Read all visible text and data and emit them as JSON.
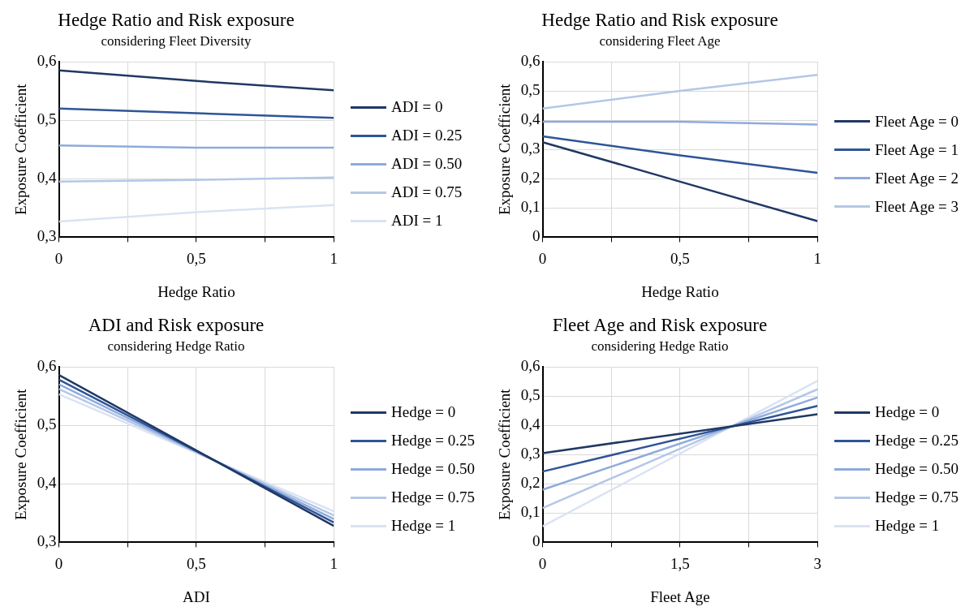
{
  "chart_data": [
    {
      "type": "line",
      "title": "Hedge Ratio and Risk exposure",
      "subtitle": "considering Fleet Diversity",
      "xlabel": "Hedge Ratio",
      "ylabel": "Exposure Coefficient",
      "x": [
        0,
        0.5,
        1
      ],
      "xlim": [
        0,
        1
      ],
      "xticks": [
        0,
        {
          "value": 0.25,
          "label": null
        },
        {
          "value": 0.5,
          "label": "0,5"
        },
        {
          "value": 0.75,
          "label": null
        },
        1
      ],
      "ylim": [
        0.3,
        0.6
      ],
      "yticks": [
        {
          "value": 0.3,
          "label": "0,3"
        },
        {
          "value": 0.4,
          "label": "0,4"
        },
        {
          "value": 0.5,
          "label": "0,5"
        },
        {
          "value": 0.6,
          "label": "0,6"
        }
      ],
      "grid": true,
      "legend": "right",
      "marker": "none",
      "line_style": "solid",
      "series": [
        {
          "name": "ADI = 0",
          "color": "#203864",
          "values": [
            0.585,
            0.567,
            0.551
          ]
        },
        {
          "name": "ADI = 0.25",
          "color": "#2f5597",
          "values": [
            0.52,
            0.512,
            0.504
          ]
        },
        {
          "name": "ADI = 0.50",
          "color": "#8faadc",
          "values": [
            0.457,
            0.453,
            0.453
          ]
        },
        {
          "name": "ADI = 0.75",
          "color": "#b4c7e7",
          "values": [
            0.395,
            0.398,
            0.402
          ]
        },
        {
          "name": "ADI = 1",
          "color": "#dae3f3",
          "values": [
            0.327,
            0.343,
            0.355
          ]
        }
      ]
    },
    {
      "type": "line",
      "title": "Hedge Ratio and Risk exposure",
      "subtitle": "considering Fleet Age",
      "xlabel": "Hedge Ratio",
      "ylabel": "Exposure Coefficient",
      "x": [
        0,
        0.5,
        1
      ],
      "xlim": [
        0,
        1
      ],
      "xticks": [
        0,
        {
          "value": 0.25,
          "label": null
        },
        {
          "value": 0.5,
          "label": "0,5"
        },
        {
          "value": 0.75,
          "label": null
        },
        1
      ],
      "ylim": [
        0,
        0.6
      ],
      "yticks": [
        0,
        {
          "value": 0.1,
          "label": "0,1"
        },
        {
          "value": 0.2,
          "label": "0,2"
        },
        {
          "value": 0.3,
          "label": "0,3"
        },
        {
          "value": 0.4,
          "label": "0,4"
        },
        {
          "value": 0.5,
          "label": "0,5"
        },
        {
          "value": 0.6,
          "label": "0,6"
        }
      ],
      "grid": true,
      "legend": "right",
      "marker": "none",
      "line_style": "solid",
      "series": [
        {
          "name": "Fleet Age = 0",
          "color": "#203864",
          "values": [
            0.325,
            0.19,
            0.055
          ]
        },
        {
          "name": "Fleet Age = 1",
          "color": "#2f5597",
          "values": [
            0.345,
            0.28,
            0.22
          ]
        },
        {
          "name": "Fleet Age = 2",
          "color": "#8faadc",
          "values": [
            0.395,
            0.395,
            0.385
          ]
        },
        {
          "name": "Fleet Age = 3",
          "color": "#b4c7e7",
          "values": [
            0.44,
            0.5,
            0.555
          ]
        }
      ]
    },
    {
      "type": "line",
      "title": "ADI and Risk exposure",
      "subtitle": "considering Hedge Ratio",
      "xlabel": "ADI",
      "ylabel": "Exposure Coefficient",
      "x": [
        0,
        0.5,
        1
      ],
      "xlim": [
        0,
        1
      ],
      "xticks": [
        0,
        {
          "value": 0.25,
          "label": null
        },
        {
          "value": 0.5,
          "label": "0,5"
        },
        {
          "value": 0.75,
          "label": null
        },
        1
      ],
      "ylim": [
        0.3,
        0.6
      ],
      "yticks": [
        {
          "value": 0.3,
          "label": "0,3"
        },
        {
          "value": 0.4,
          "label": "0,4"
        },
        {
          "value": 0.5,
          "label": "0,5"
        },
        {
          "value": 0.6,
          "label": "0,6"
        }
      ],
      "grid": true,
      "legend": "right",
      "marker": "none",
      "line_style": "solid",
      "series": [
        {
          "name": "Hedge = 0",
          "color": "#203864",
          "values": [
            0.586,
            0.457,
            0.328
          ]
        },
        {
          "name": "Hedge = 0.25",
          "color": "#2f5597",
          "values": [
            0.578,
            0.456,
            0.334
          ]
        },
        {
          "name": "Hedge = 0.50",
          "color": "#8faadc",
          "values": [
            0.57,
            0.455,
            0.34
          ]
        },
        {
          "name": "Hedge = 0.75",
          "color": "#b4c7e7",
          "values": [
            0.562,
            0.454,
            0.346
          ]
        },
        {
          "name": "Hedge = 1",
          "color": "#dae3f3",
          "values": [
            0.553,
            0.453,
            0.353
          ]
        }
      ]
    },
    {
      "type": "line",
      "title": "Fleet Age and Risk exposure",
      "subtitle": "considering Hedge Ratio",
      "xlabel": "Fleet Age",
      "ylabel": "Exposure Coefficient",
      "x": [
        0,
        3
      ],
      "xlim": [
        0,
        3
      ],
      "xticks": [
        0,
        {
          "value": 0.75,
          "label": null
        },
        {
          "value": 1.5,
          "label": "1,5"
        },
        {
          "value": 2.25,
          "label": null
        },
        3
      ],
      "ylim": [
        0,
        0.6
      ],
      "yticks": [
        0,
        {
          "value": 0.1,
          "label": "0,1"
        },
        {
          "value": 0.2,
          "label": "0,2"
        },
        {
          "value": 0.3,
          "label": "0,3"
        },
        {
          "value": 0.4,
          "label": "0,4"
        },
        {
          "value": 0.5,
          "label": "0,5"
        },
        {
          "value": 0.6,
          "label": "0,6"
        }
      ],
      "grid": true,
      "legend": "right",
      "marker": "none",
      "line_style": "solid",
      "series": [
        {
          "name": "Hedge = 0",
          "color": "#203864",
          "values": [
            0.305,
            0.438
          ]
        },
        {
          "name": "Hedge = 0.25",
          "color": "#2f5597",
          "values": [
            0.242,
            0.466
          ]
        },
        {
          "name": "Hedge = 0.50",
          "color": "#8faadc",
          "values": [
            0.18,
            0.495
          ]
        },
        {
          "name": "Hedge = 0.75",
          "color": "#b4c7e7",
          "values": [
            0.117,
            0.523
          ]
        },
        {
          "name": "Hedge = 1",
          "color": "#dae3f3",
          "values": [
            0.055,
            0.552
          ]
        }
      ]
    }
  ]
}
